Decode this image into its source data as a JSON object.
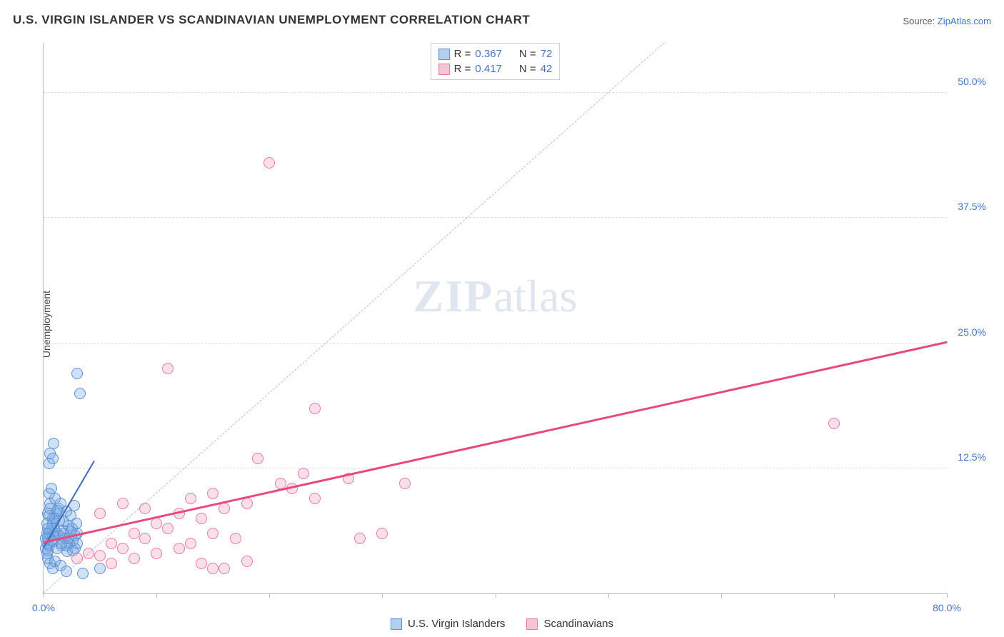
{
  "title": "U.S. VIRGIN ISLANDER VS SCANDINAVIAN UNEMPLOYMENT CORRELATION CHART",
  "source_prefix": "Source: ",
  "source_link": "ZipAtlas.com",
  "y_axis_label": "Unemployment",
  "watermark_a": "ZIP",
  "watermark_b": "atlas",
  "legend_top": [
    {
      "swatch_fill": "#b3ceee",
      "swatch_border": "#5a8fd6",
      "r_label": "R =",
      "r_val": "0.367",
      "n_label": "N =",
      "n_val": "72"
    },
    {
      "swatch_fill": "#f5c5d6",
      "swatch_border": "#e77aa3",
      "r_label": "R =",
      "r_val": "0.417",
      "n_label": "N =",
      "n_val": "42"
    }
  ],
  "legend_bottom": [
    {
      "swatch_fill": "#b3ceee",
      "swatch_border": "#5a8fd6",
      "label": "U.S. Virgin Islanders"
    },
    {
      "swatch_fill": "#f5c5d6",
      "swatch_border": "#e77aa3",
      "label": "Scandinavians"
    }
  ],
  "chart": {
    "type": "scatter",
    "xlim": [
      0,
      80
    ],
    "ylim": [
      0,
      55
    ],
    "y_ticks": [
      12.5,
      25.0,
      37.5,
      50.0
    ],
    "y_tick_labels": [
      "12.5%",
      "25.0%",
      "37.5%",
      "50.0%"
    ],
    "x_ticks": [
      0,
      10,
      20,
      30,
      40,
      50,
      60,
      70,
      80
    ],
    "x_tick_labels": {
      "0": "0.0%",
      "80": "80.0%"
    },
    "grid_color": "#dddddd",
    "axis_color": "#bbbbbb",
    "marker_radius": 8,
    "identity_line": {
      "x1": 0,
      "y1": 0,
      "x2": 55,
      "y2": 55,
      "color": "#a8c4e8"
    },
    "series": [
      {
        "name": "usvi",
        "fill": "rgba(120,170,225,0.35)",
        "stroke": "#5a8fd6",
        "trend": {
          "x1": 0,
          "y1": 4.5,
          "x2": 4.5,
          "y2": 13.2,
          "color": "#3d6db8",
          "width": 2
        },
        "points": [
          [
            0.2,
            4.5
          ],
          [
            0.3,
            5.0
          ],
          [
            0.4,
            5.5
          ],
          [
            0.5,
            6.0
          ],
          [
            0.6,
            6.2
          ],
          [
            0.7,
            6.5
          ],
          [
            0.8,
            7.0
          ],
          [
            0.9,
            5.2
          ],
          [
            1.0,
            7.5
          ],
          [
            1.1,
            8.0
          ],
          [
            1.2,
            6.0
          ],
          [
            1.3,
            8.5
          ],
          [
            1.4,
            5.8
          ],
          [
            1.5,
            9.0
          ],
          [
            1.6,
            4.8
          ],
          [
            1.7,
            6.3
          ],
          [
            1.8,
            7.2
          ],
          [
            1.9,
            5.5
          ],
          [
            2.0,
            8.2
          ],
          [
            2.1,
            4.2
          ],
          [
            2.2,
            6.8
          ],
          [
            2.3,
            5.0
          ],
          [
            2.4,
            7.8
          ],
          [
            2.5,
            6.5
          ],
          [
            2.6,
            5.3
          ],
          [
            2.7,
            8.8
          ],
          [
            2.8,
            4.5
          ],
          [
            2.9,
            7.0
          ],
          [
            3.0,
            6.0
          ],
          [
            0.5,
            13.0
          ],
          [
            0.6,
            14.0
          ],
          [
            0.8,
            13.5
          ],
          [
            0.9,
            15.0
          ],
          [
            0.4,
            3.5
          ],
          [
            0.6,
            3.0
          ],
          [
            0.8,
            2.5
          ],
          [
            1.0,
            3.2
          ],
          [
            1.5,
            2.8
          ],
          [
            2.0,
            2.2
          ],
          [
            3.5,
            2.0
          ],
          [
            5.0,
            2.5
          ],
          [
            3.0,
            22.0
          ],
          [
            3.2,
            20.0
          ],
          [
            0.3,
            4.0
          ],
          [
            0.4,
            4.3
          ],
          [
            0.5,
            4.8
          ],
          [
            0.7,
            5.3
          ],
          [
            0.8,
            5.8
          ],
          [
            1.0,
            6.3
          ],
          [
            1.2,
            4.5
          ],
          [
            1.4,
            7.3
          ],
          [
            1.6,
            5.0
          ],
          [
            1.8,
            6.0
          ],
          [
            2.0,
            4.8
          ],
          [
            2.2,
            5.5
          ],
          [
            2.4,
            6.2
          ],
          [
            2.6,
            4.3
          ],
          [
            2.8,
            5.8
          ],
          [
            3.0,
            5.0
          ],
          [
            0.4,
            8.0
          ],
          [
            0.6,
            9.0
          ],
          [
            0.8,
            7.5
          ],
          [
            1.0,
            9.5
          ],
          [
            1.2,
            8.3
          ],
          [
            0.5,
            10.0
          ],
          [
            0.7,
            10.5
          ],
          [
            0.3,
            7.0
          ],
          [
            0.5,
            7.8
          ],
          [
            0.2,
            5.5
          ],
          [
            0.3,
            6.0
          ],
          [
            0.4,
            6.5
          ],
          [
            0.6,
            8.5
          ]
        ]
      },
      {
        "name": "scan",
        "fill": "rgba(235,150,185,0.30)",
        "stroke": "#e77aa3",
        "trend": {
          "x1": 0,
          "y1": 5.0,
          "x2": 80,
          "y2": 25.0,
          "color": "#e8487f",
          "width": 2.5
        },
        "points": [
          [
            3.0,
            3.5
          ],
          [
            4.0,
            4.0
          ],
          [
            5.0,
            3.8
          ],
          [
            6.0,
            5.0
          ],
          [
            7.0,
            4.5
          ],
          [
            8.0,
            6.0
          ],
          [
            9.0,
            5.5
          ],
          [
            10.0,
            7.0
          ],
          [
            11.0,
            6.5
          ],
          [
            12.0,
            8.0
          ],
          [
            13.0,
            5.0
          ],
          [
            14.0,
            7.5
          ],
          [
            15.0,
            6.0
          ],
          [
            16.0,
            8.5
          ],
          [
            17.0,
            5.5
          ],
          [
            18.0,
            9.0
          ],
          [
            6.0,
            3.0
          ],
          [
            8.0,
            3.5
          ],
          [
            10.0,
            4.0
          ],
          [
            12.0,
            4.5
          ],
          [
            14.0,
            3.0
          ],
          [
            16.0,
            2.5
          ],
          [
            18.0,
            3.2
          ],
          [
            21.0,
            11.0
          ],
          [
            22.0,
            10.5
          ],
          [
            23.0,
            12.0
          ],
          [
            24.0,
            9.5
          ],
          [
            27.0,
            11.5
          ],
          [
            30.0,
            6.0
          ],
          [
            32.0,
            11.0
          ],
          [
            19.0,
            13.5
          ],
          [
            24.0,
            18.5
          ],
          [
            11.0,
            22.5
          ],
          [
            20.0,
            43.0
          ],
          [
            15.0,
            2.5
          ],
          [
            5.0,
            8.0
          ],
          [
            7.0,
            9.0
          ],
          [
            9.0,
            8.5
          ],
          [
            13.0,
            9.5
          ],
          [
            15.0,
            10.0
          ],
          [
            70.0,
            17.0
          ],
          [
            28.0,
            5.5
          ]
        ]
      }
    ]
  }
}
